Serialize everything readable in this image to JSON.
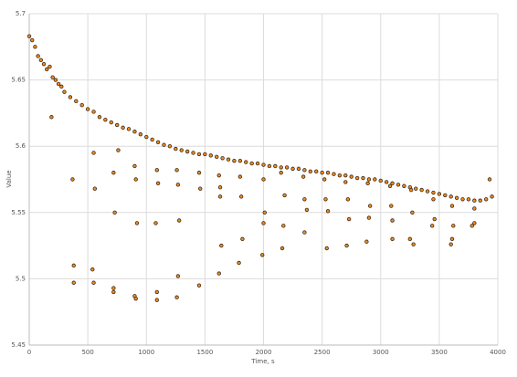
{
  "chart_data": {
    "type": "scatter",
    "x_label": "Time, s",
    "y_label": "Value",
    "xlim": [
      0,
      4000
    ],
    "xticks": [
      0,
      500,
      1000,
      1500,
      2000,
      2500,
      3000,
      3500,
      4000
    ],
    "ylim": [
      5.45,
      5.7
    ],
    "yticks": [
      5.45,
      5.5,
      5.55,
      5.6,
      5.65,
      5.7
    ],
    "grid": true,
    "color": "#f28c1e",
    "edge_color": "#3a2a1a",
    "x": [
      0,
      25,
      50,
      75,
      100,
      125,
      150,
      175,
      200,
      225,
      250,
      275,
      300,
      350,
      400,
      450,
      500,
      550,
      600,
      650,
      700,
      750,
      800,
      850,
      900,
      950,
      1000,
      1050,
      1100,
      1150,
      1200,
      1250,
      1300,
      1350,
      1400,
      1450,
      1500,
      1550,
      1600,
      1650,
      1700,
      1750,
      1800,
      1850,
      1900,
      1950,
      2000,
      2050,
      2100,
      2150,
      2200,
      2250,
      2300,
      2350,
      2400,
      2450,
      2500,
      2550,
      2600,
      2650,
      2700,
      2750,
      2800,
      2850,
      2900,
      2950,
      3000,
      3050,
      3100,
      3150,
      3200,
      3250,
      3300,
      3350,
      3400,
      3450,
      3500,
      3550,
      3600,
      3650,
      3700,
      3750,
      3800,
      3850,
      3900,
      3950,
      190,
      370,
      380,
      380,
      550,
      560,
      540,
      550,
      720,
      730,
      720,
      720,
      760,
      900,
      910,
      920,
      900,
      910,
      1090,
      1100,
      1080,
      1090,
      1090,
      1260,
      1270,
      1280,
      1270,
      1260,
      1450,
      1460,
      1450,
      1620,
      1630,
      1630,
      1620,
      1640,
      1800,
      1810,
      1820,
      1790,
      2000,
      2010,
      2000,
      1990,
      2150,
      2180,
      2170,
      2160,
      2340,
      2350,
      2370,
      2350,
      2520,
      2530,
      2550,
      2540,
      2700,
      2720,
      2730,
      2710,
      2890,
      2910,
      2900,
      2880,
      3080,
      3090,
      3100,
      3100,
      3260,
      3270,
      3250,
      3280,
      3450,
      3460,
      3440,
      3610,
      3620,
      3610,
      3600,
      3800,
      3800,
      3780,
      3930
    ],
    "values": [
      5.683,
      5.68,
      5.675,
      5.668,
      5.665,
      5.662,
      5.658,
      5.66,
      5.652,
      5.65,
      5.647,
      5.645,
      5.641,
      5.637,
      5.634,
      5.631,
      5.628,
      5.626,
      5.622,
      5.62,
      5.618,
      5.616,
      5.614,
      5.613,
      5.611,
      5.609,
      5.607,
      5.605,
      5.603,
      5.601,
      5.6,
      5.598,
      5.597,
      5.596,
      5.595,
      5.594,
      5.594,
      5.593,
      5.592,
      5.591,
      5.59,
      5.589,
      5.589,
      5.588,
      5.587,
      5.587,
      5.586,
      5.585,
      5.585,
      5.584,
      5.584,
      5.583,
      5.583,
      5.582,
      5.581,
      5.581,
      5.58,
      5.58,
      5.579,
      5.578,
      5.578,
      5.577,
      5.576,
      5.576,
      5.575,
      5.575,
      5.574,
      5.573,
      5.572,
      5.571,
      5.57,
      5.569,
      5.568,
      5.567,
      5.566,
      5.565,
      5.564,
      5.563,
      5.562,
      5.561,
      5.56,
      5.56,
      5.559,
      5.559,
      5.56,
      5.562,
      5.622,
      5.575,
      5.51,
      5.497,
      5.595,
      5.568,
      5.507,
      5.497,
      5.58,
      5.55,
      5.49,
      5.493,
      5.597,
      5.585,
      5.575,
      5.542,
      5.487,
      5.485,
      5.582,
      5.572,
      5.542,
      5.49,
      5.484,
      5.582,
      5.571,
      5.544,
      5.502,
      5.486,
      5.58,
      5.568,
      5.495,
      5.578,
      5.569,
      5.562,
      5.504,
      5.525,
      5.577,
      5.562,
      5.53,
      5.512,
      5.575,
      5.55,
      5.542,
      5.518,
      5.58,
      5.563,
      5.54,
      5.523,
      5.577,
      5.56,
      5.552,
      5.535,
      5.575,
      5.56,
      5.551,
      5.523,
      5.573,
      5.56,
      5.545,
      5.525,
      5.572,
      5.555,
      5.546,
      5.528,
      5.57,
      5.555,
      5.544,
      5.53,
      5.567,
      5.55,
      5.53,
      5.526,
      5.56,
      5.545,
      5.54,
      5.555,
      5.54,
      5.53,
      5.526,
      5.553,
      5.542,
      5.54,
      5.575
    ]
  }
}
